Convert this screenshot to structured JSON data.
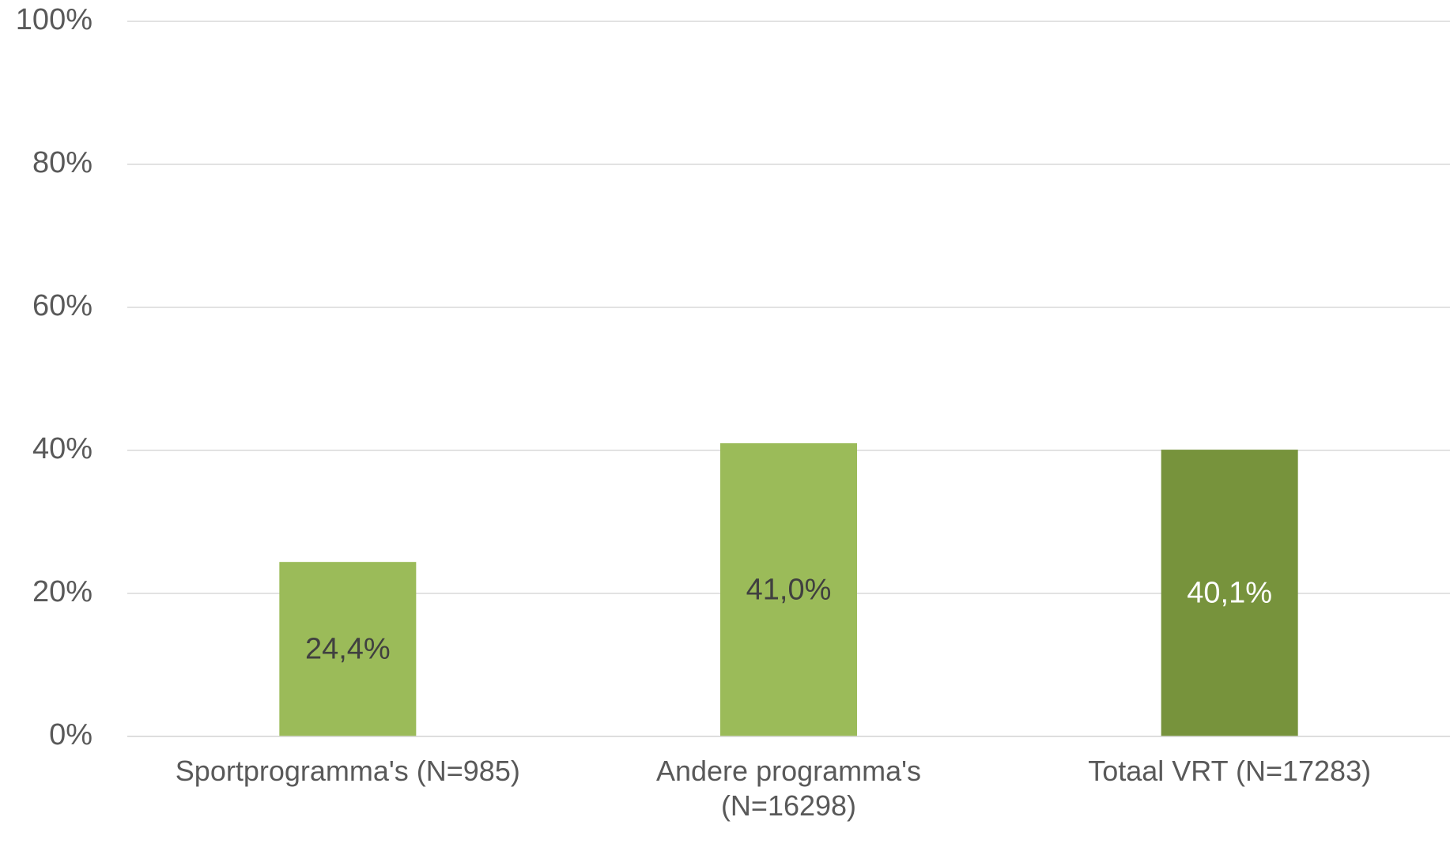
{
  "chart_data": {
    "type": "bar",
    "categories": [
      "Sportprogramma's (N=985)",
      "Andere programma's (N=16298)",
      "Totaal VRT (N=17283)"
    ],
    "values": [
      24.4,
      41.0,
      40.1
    ],
    "value_labels": [
      "24,4%",
      "41,0%",
      "40,1%"
    ],
    "colors": [
      "#9bbb59",
      "#9bbb59",
      "#77933c"
    ],
    "label_colors": [
      "#404040",
      "#404040",
      "#ffffff"
    ],
    "ylim": [
      0,
      100
    ],
    "yticks": [
      {
        "value": 0,
        "label": "0%"
      },
      {
        "value": 20,
        "label": "20%"
      },
      {
        "value": 40,
        "label": "40%"
      },
      {
        "value": 60,
        "label": "60%"
      },
      {
        "value": 80,
        "label": "80%"
      },
      {
        "value": 100,
        "label": "100%"
      }
    ],
    "grid": true
  }
}
